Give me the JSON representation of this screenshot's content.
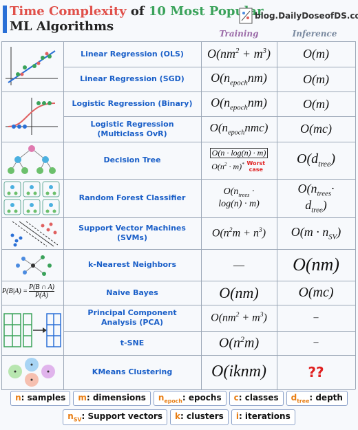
{
  "header": {
    "title_parts": [
      "Time Complexity",
      " of ",
      "10 Most Popular"
    ],
    "title_line2": "ML Algorithms",
    "site": "blog.DailyDoseofDS.com"
  },
  "columns": {
    "training": "Training",
    "inference": "Inference"
  },
  "naive_bayes_icon": {
    "lhs": "P(B|A) =",
    "num": "P(B ∩ A)",
    "den": "P(A)"
  },
  "rows": [
    {
      "name": [
        "Linear Regression (OLS)"
      ],
      "training": [
        [
          "O(nm",
          {
            "sup": "2"
          },
          " + m",
          {
            "sup": "3"
          },
          ")"
        ]
      ],
      "inference": [
        [
          "O(m)"
        ]
      ]
    },
    {
      "name": [
        "Linear Regression (SGD)"
      ],
      "training": [
        [
          "O(n",
          {
            "sub": "epoch"
          },
          "nm)"
        ]
      ],
      "inference": [
        [
          "O(m)"
        ]
      ]
    },
    {
      "name": [
        "Logistic Regression (Binary)"
      ],
      "training": [
        [
          "O(n",
          {
            "sub": "epoch"
          },
          "nm)"
        ]
      ],
      "inference": [
        [
          "O(m)"
        ]
      ]
    },
    {
      "name": [
        "Logistic Regression",
        "(Multiclass OvR)"
      ],
      "training": [
        [
          "O(n",
          {
            "sub": "epoch"
          },
          "nmc)"
        ]
      ],
      "inference": [
        [
          "O(mc)"
        ]
      ]
    },
    {
      "name": [
        "Decision Tree"
      ],
      "training": [
        [
          "O(n · log(n) · m)"
        ]
      ],
      "training_worst": [
        [
          "O(n",
          {
            "sup": "2"
          },
          " · m)",
          {
            "sup": "*"
          }
        ]
      ],
      "note": "Worst case",
      "inference": [
        [
          "O(d",
          {
            "sub": "tree"
          },
          ")"
        ]
      ]
    },
    {
      "name": [
        "Random Forest Classifier"
      ],
      "training": [
        [
          "O(n",
          {
            "sub": "trees"
          },
          " ·"
        ],
        [
          "log(n) · m)"
        ]
      ],
      "inference": [
        [
          "O(n",
          {
            "sub": "trees"
          },
          "·"
        ],
        [
          "d",
          {
            "sub": "tree"
          },
          ")"
        ]
      ]
    },
    {
      "name": [
        "Support Vector Machines (SVMs)"
      ],
      "training": [
        [
          "O(n",
          {
            "sup": "2"
          },
          "m + n",
          {
            "sup": "3"
          },
          ")"
        ]
      ],
      "inference": [
        [
          "O(m · n",
          {
            "sub": "SV"
          },
          ")"
        ]
      ]
    },
    {
      "name": [
        "k-Nearest Neighbors"
      ],
      "training": [
        [
          "—"
        ]
      ],
      "inference": [
        [
          "O(nm)"
        ]
      ]
    },
    {
      "name": [
        "Naive Bayes"
      ],
      "training": [
        [
          "O(nm)"
        ]
      ],
      "inference": [
        [
          "O(mc)"
        ]
      ]
    },
    {
      "name": [
        "Principal Component",
        "Analysis (PCA)"
      ],
      "training": [
        [
          "O(nm",
          {
            "sup": "2"
          },
          " + m",
          {
            "sup": "3"
          },
          ")"
        ]
      ],
      "inference": [
        [
          "–"
        ]
      ]
    },
    {
      "name": [
        "t-SNE"
      ],
      "training": [
        [
          "O(n",
          {
            "sup": "2"
          },
          "m)"
        ]
      ],
      "inference": [
        [
          "–"
        ]
      ]
    },
    {
      "name": [
        "KMeans Clustering"
      ],
      "training": [
        [
          "O(iknm)"
        ]
      ],
      "inference": [
        [
          "??"
        ]
      ]
    }
  ],
  "legend": [
    {
      "var": [
        "n"
      ],
      "desc": ": samples"
    },
    {
      "var": [
        "m"
      ],
      "desc": ": dimensions"
    },
    {
      "var": [
        "n",
        {
          "sub": "epoch"
        }
      ],
      "desc": ": epochs"
    },
    {
      "var": [
        "c"
      ],
      "desc": ": classes"
    },
    {
      "var": [
        "d",
        {
          "sub": "tree"
        }
      ],
      "desc": ": depth"
    },
    {
      "var": [
        "n",
        {
          "sub": "SV"
        }
      ],
      "desc": ": Support vectors"
    },
    {
      "var": [
        "k"
      ],
      "desc": ": clusters"
    },
    {
      "var": [
        "i"
      ],
      "desc": ": iterations"
    }
  ]
}
